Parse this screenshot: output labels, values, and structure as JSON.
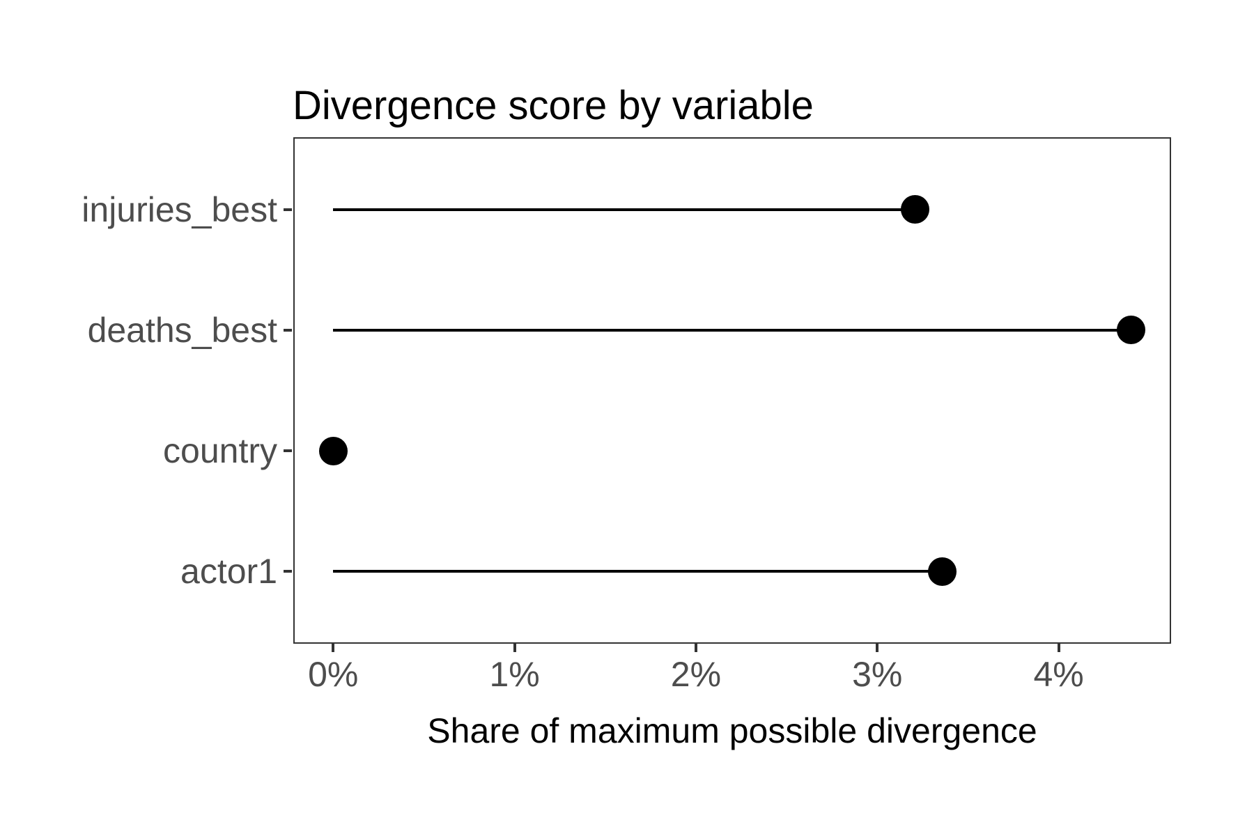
{
  "figure": {
    "title": "Divergence score by variable",
    "x_axis_title": "Share of maximum possible divergence"
  },
  "colors": {
    "background": "#FFFFFF",
    "title_text": "#000000",
    "axis_title_text": "#000000",
    "axis_tick_text": "#4D4D4D",
    "tick_mark": "#333333",
    "panel_border": "#333333",
    "stem": "#000000",
    "point": "#000000"
  },
  "chart_data": {
    "type": "bar",
    "variant": "horizontal-lollipop",
    "title": "Divergence score by variable",
    "xlabel": "Share of maximum possible divergence",
    "ylabel": "",
    "categories": [
      "injuries_best",
      "deaths_best",
      "country",
      "actor1"
    ],
    "values": [
      3.21,
      4.4,
      0.0,
      3.36
    ],
    "value_unit": "percent of maximum possible divergence",
    "xlim": [
      -0.22,
      4.62
    ],
    "x_ticks": [
      0,
      1,
      2,
      3,
      4
    ],
    "x_tick_labels": [
      "0%",
      "1%",
      "2%",
      "3%",
      "4%"
    ],
    "grid": false,
    "legend": false
  }
}
